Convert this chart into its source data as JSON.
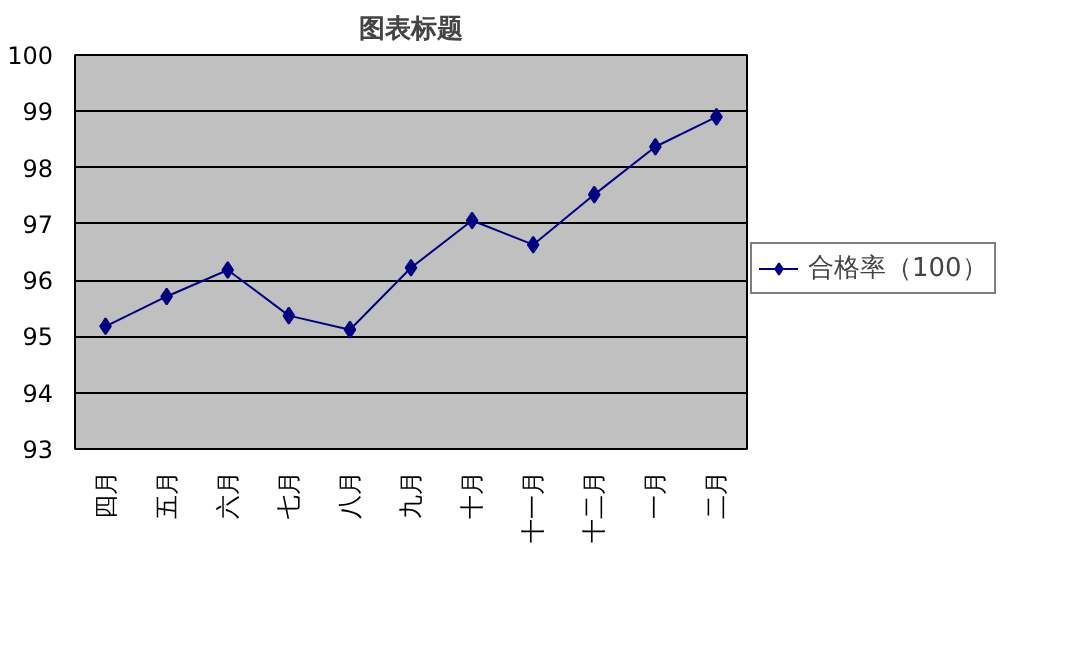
{
  "chart_data": {
    "type": "line",
    "title": "图表标题",
    "categories": [
      "四月",
      "五月",
      "六月",
      "七月",
      "八月",
      "九月",
      "十月",
      "十一月",
      "十二月",
      "一月",
      "二月"
    ],
    "series": [
      {
        "name": "合格率（100）",
        "color": "#000080",
        "values": [
          95.18,
          95.71,
          96.18,
          95.37,
          95.12,
          96.22,
          97.06,
          96.63,
          97.52,
          98.37,
          98.9
        ]
      }
    ],
    "ylim": [
      93,
      100
    ],
    "yticks": [
      93,
      94,
      95,
      96,
      97,
      98,
      99,
      100
    ],
    "grid": "y",
    "legend": "right",
    "marker": "diamond",
    "line_style": "solid"
  }
}
